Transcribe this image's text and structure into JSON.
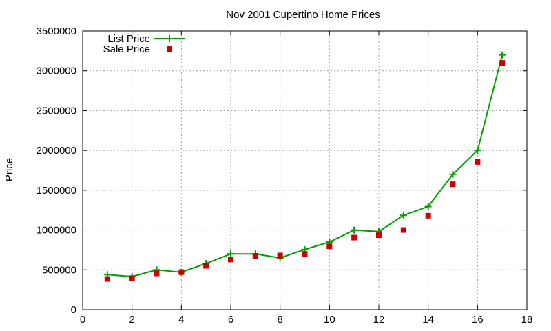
{
  "chart_data": {
    "type": "line",
    "title": "Nov 2001 Cupertino Home Prices",
    "xlabel": "",
    "ylabel": "Price",
    "xlim": [
      0,
      18
    ],
    "ylim": [
      0,
      3500000
    ],
    "xticks": [
      "0",
      "2",
      "4",
      "6",
      "8",
      "10",
      "12",
      "14",
      "16",
      "18"
    ],
    "yticks": [
      "0",
      "500000",
      "1000000",
      "1500000",
      "2000000",
      "2500000",
      "3000000",
      "3500000"
    ],
    "grid": true,
    "legend_position": "top-left",
    "series": [
      {
        "name": "List Price",
        "style": "line-points",
        "marker": "plus",
        "color": "#009e00",
        "x": [
          1,
          2,
          3,
          4,
          5,
          6,
          7,
          8,
          9,
          10,
          11,
          12,
          13,
          14,
          15,
          16,
          17
        ],
        "y": [
          440000,
          415000,
          500000,
          470000,
          580000,
          700000,
          700000,
          650000,
          755000,
          850000,
          1000000,
          980000,
          1185000,
          1295000,
          1700000,
          2000000,
          3200000
        ]
      },
      {
        "name": "Sale Price",
        "style": "points",
        "marker": "square",
        "color": "#cc0000",
        "x": [
          1,
          2,
          3,
          4,
          5,
          6,
          7,
          8,
          9,
          10,
          11,
          12,
          13,
          14,
          15,
          16,
          17
        ],
        "y": [
          385000,
          395000,
          455000,
          470000,
          550000,
          630000,
          675000,
          680000,
          700000,
          795000,
          905000,
          935000,
          1000000,
          1180000,
          1575000,
          1855000,
          3100000
        ]
      }
    ]
  }
}
